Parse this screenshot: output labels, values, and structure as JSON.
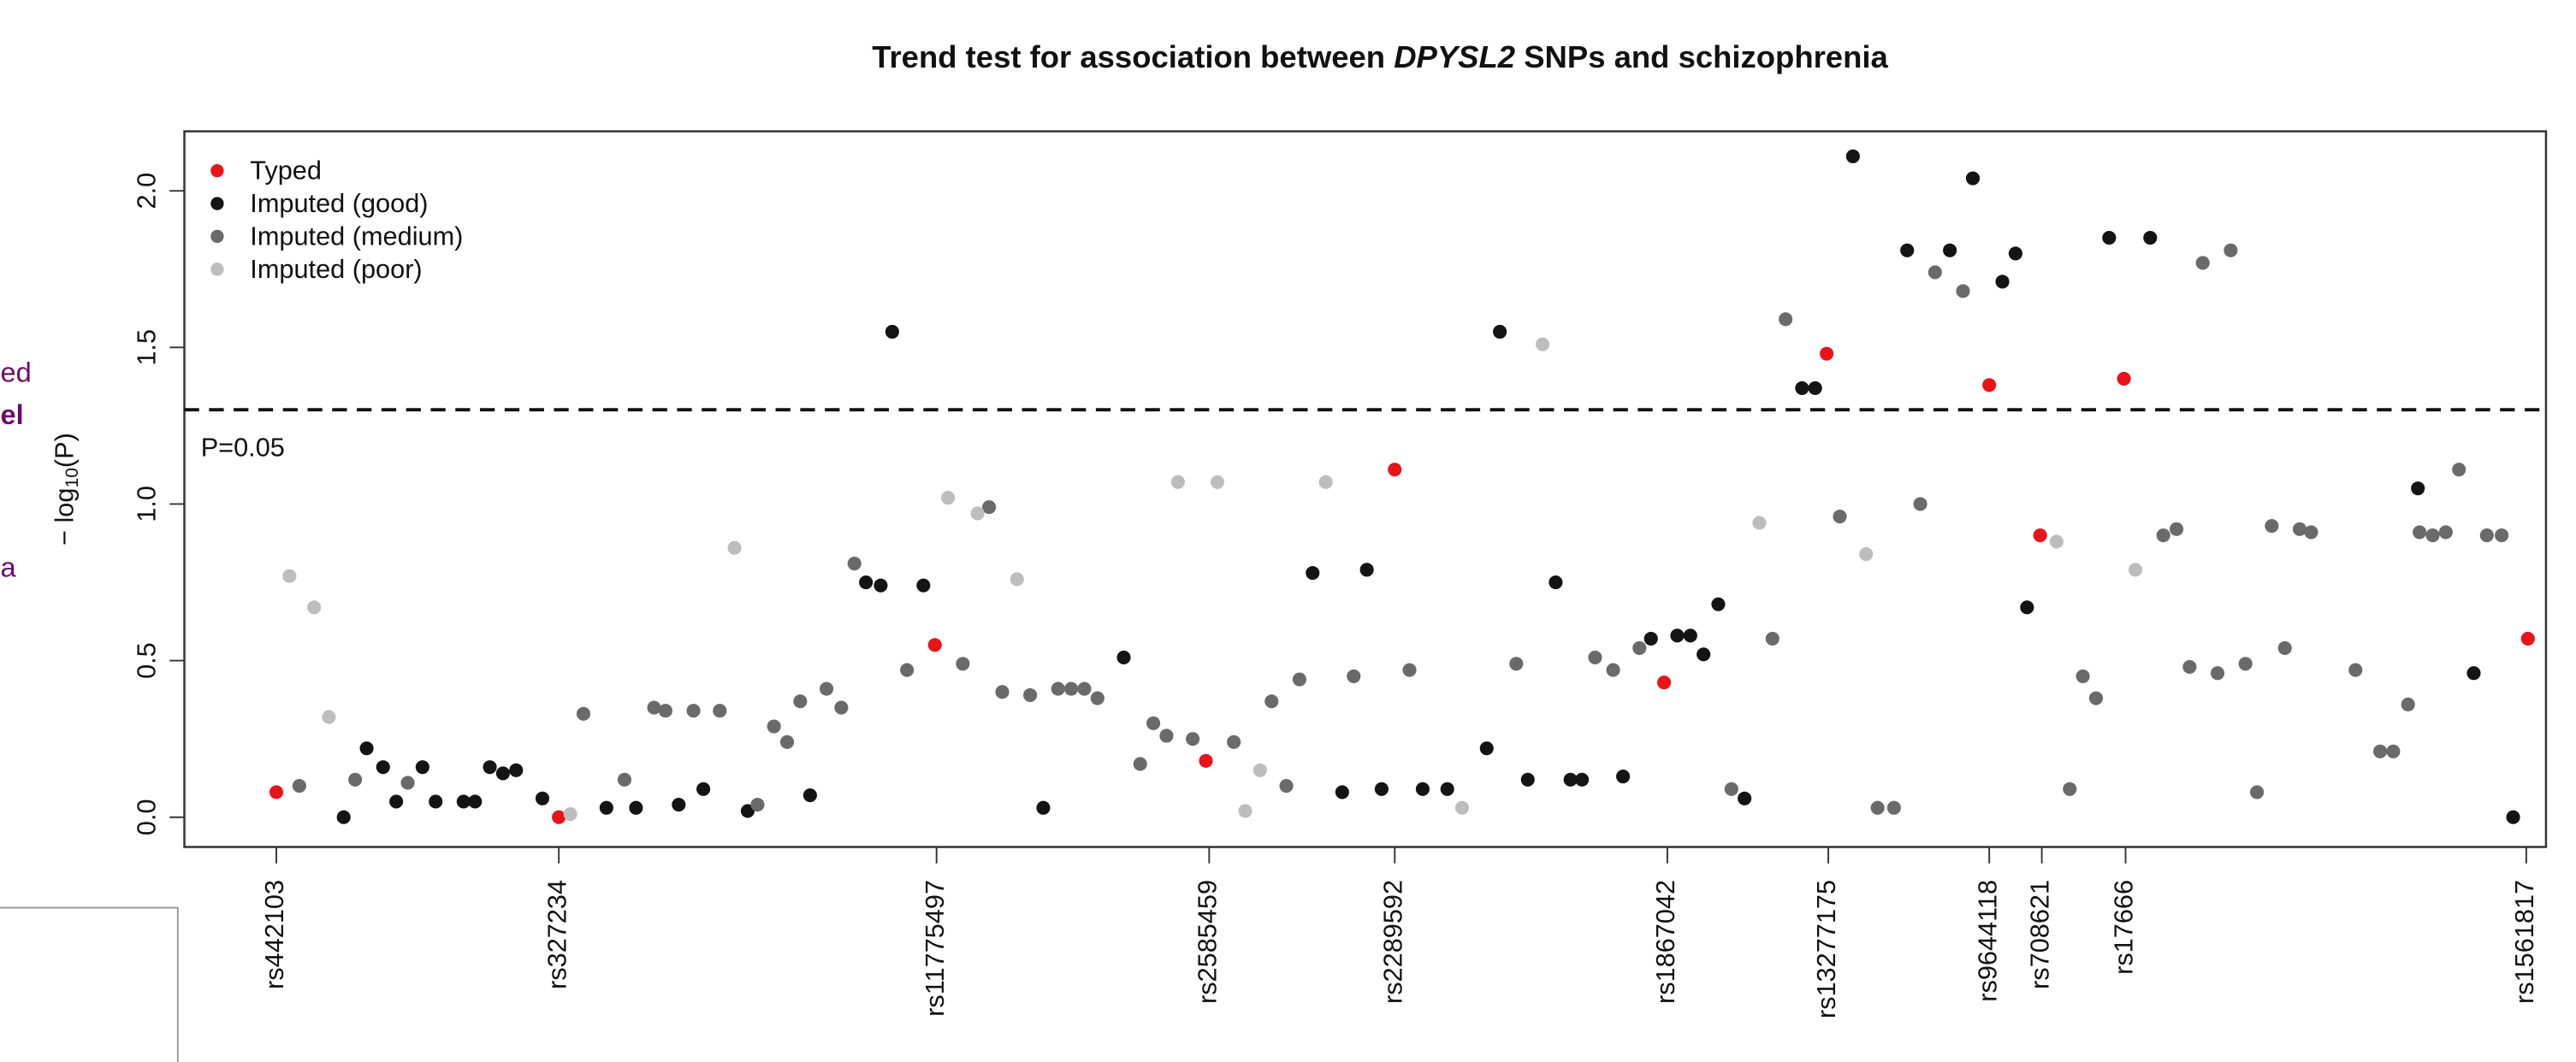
{
  "chart_data": {
    "type": "scatter",
    "title": [
      "Trend test for association between ",
      "DPYSL2",
      " SNPs and schizophrenia"
    ],
    "y_label": [
      "− log",
      "10",
      "(P)"
    ],
    "xlim": [
      0,
      1438
    ],
    "ylim": [
      -0.095,
      2.19
    ],
    "yticks": [
      {
        "value": 0,
        "label": "0.0"
      },
      {
        "value": 0.5,
        "label": "0.5"
      },
      {
        "value": 1,
        "label": "1.0"
      },
      {
        "value": 1.5,
        "label": "1.5"
      },
      {
        "value": 2,
        "label": "2.0"
      }
    ],
    "xticks": [
      {
        "value": 56,
        "label": "rs442103"
      },
      {
        "value": 228,
        "label": "rs327234"
      },
      {
        "value": 458,
        "label": "rs11775497"
      },
      {
        "value": 624,
        "label": "rs2585459"
      },
      {
        "value": 737,
        "label": "rs2289592"
      },
      {
        "value": 903,
        "label": "rs1867042"
      },
      {
        "value": 1001,
        "label": "rs13277175"
      },
      {
        "value": 1099,
        "label": "rs9644118"
      },
      {
        "value": 1131,
        "label": "rs708621"
      },
      {
        "value": 1182,
        "label": "rs17666"
      },
      {
        "value": 1426,
        "label": "rs1561817"
      }
    ],
    "hline": 1.301,
    "hline_label": "P=0.05",
    "legend": "top-left",
    "series": [
      {
        "name": "Typed",
        "color": "#e8141a",
        "x": [
          56,
          228,
          457,
          622,
          737,
          901,
          1000,
          1099,
          1130,
          1181,
          1427
        ],
        "values": [
          0.08,
          0.0,
          0.55,
          0.18,
          1.11,
          0.43,
          1.48,
          1.38,
          0.9,
          1.4,
          0.57
        ]
      },
      {
        "name": "Imputed (good)",
        "color": "#141414",
        "x": [
          97,
          111,
          121,
          129,
          145,
          153,
          170,
          177,
          186,
          194,
          202,
          218,
          257,
          275,
          301,
          316,
          343,
          381,
          415,
          424,
          450,
          523,
          572,
          431,
          687,
          705,
          720,
          729,
          754,
          769,
          793,
          801,
          818,
          835,
          844,
          851,
          876,
          893,
          909,
          917,
          925,
          934,
          950,
          985,
          993,
          1016,
          1049,
          1075,
          1089,
          1115,
          1107,
          1122,
          1172,
          1197,
          1360,
          1394,
          1418
        ],
        "values": [
          0.0,
          0.22,
          0.16,
          0.05,
          0.16,
          0.05,
          0.05,
          0.05,
          0.16,
          0.14,
          0.15,
          0.06,
          0.03,
          0.03,
          0.04,
          0.09,
          0.02,
          0.07,
          0.75,
          0.74,
          0.74,
          0.03,
          0.51,
          1.55,
          0.78,
          0.08,
          0.79,
          0.09,
          0.09,
          0.09,
          0.22,
          1.55,
          0.12,
          0.75,
          0.12,
          0.12,
          0.13,
          0.57,
          0.58,
          0.58,
          0.52,
          0.68,
          0.06,
          1.37,
          1.37,
          2.11,
          1.81,
          1.81,
          2.04,
          1.8,
          1.71,
          0.67,
          1.85,
          1.85,
          1.05,
          0.46,
          0.0
        ]
      },
      {
        "name": "Imputed (medium)",
        "color": "#6a6a6a",
        "x": [
          70,
          104,
          136,
          243,
          268,
          286,
          293,
          310,
          326,
          349,
          359,
          367,
          375,
          391,
          400,
          408,
          440,
          474,
          490,
          498,
          515,
          532,
          540,
          548,
          556,
          582,
          590,
          598,
          614,
          639,
          671,
          662,
          679,
          712,
          746,
          811,
          859,
          870,
          886,
          942,
          967,
          975,
          1008,
          1057,
          1066,
          1083,
          1156,
          1164,
          1148,
          1205,
          1213,
          1221,
          1238,
          1255,
          1229,
          1246,
          1262,
          1271,
          1279,
          1288,
          1295,
          1322,
          1337,
          1345,
          1354,
          1385,
          1361,
          1369,
          1377,
          1402,
          1411,
          1031,
          1041
        ],
        "values": [
          0.1,
          0.12,
          0.11,
          0.33,
          0.12,
          0.35,
          0.34,
          0.34,
          0.34,
          0.04,
          0.29,
          0.24,
          0.37,
          0.41,
          0.35,
          0.81,
          0.47,
          0.49,
          0.99,
          0.4,
          0.39,
          0.41,
          0.41,
          0.41,
          0.38,
          0.17,
          0.3,
          0.26,
          0.25,
          0.24,
          0.1,
          0.37,
          0.44,
          0.45,
          0.47,
          0.49,
          0.51,
          0.47,
          0.54,
          0.09,
          0.57,
          1.59,
          0.96,
          1.0,
          1.74,
          1.68,
          0.45,
          0.38,
          0.09,
          0.9,
          0.92,
          0.48,
          0.46,
          0.49,
          1.77,
          1.81,
          0.08,
          0.93,
          0.54,
          0.92,
          0.91,
          0.47,
          0.21,
          0.21,
          0.36,
          1.11,
          0.91,
          0.9,
          0.91,
          0.9,
          0.9,
          0.03,
          0.03
        ]
      },
      {
        "name": "Imputed (poor)",
        "color": "#bdbdbd",
        "x": [
          64,
          79,
          88,
          235,
          335,
          465,
          483,
          507,
          605,
          629,
          646,
          655,
          695,
          778,
          827,
          959,
          1024,
          1140,
          1188
        ],
        "values": [
          0.77,
          0.67,
          0.32,
          0.01,
          0.86,
          1.02,
          0.97,
          0.76,
          1.07,
          1.07,
          0.02,
          0.15,
          1.07,
          0.03,
          1.51,
          0.94,
          0.84,
          0.88,
          0.79
        ]
      }
    ]
  },
  "page_fragments": [
    "ed",
    "el",
    "a"
  ]
}
